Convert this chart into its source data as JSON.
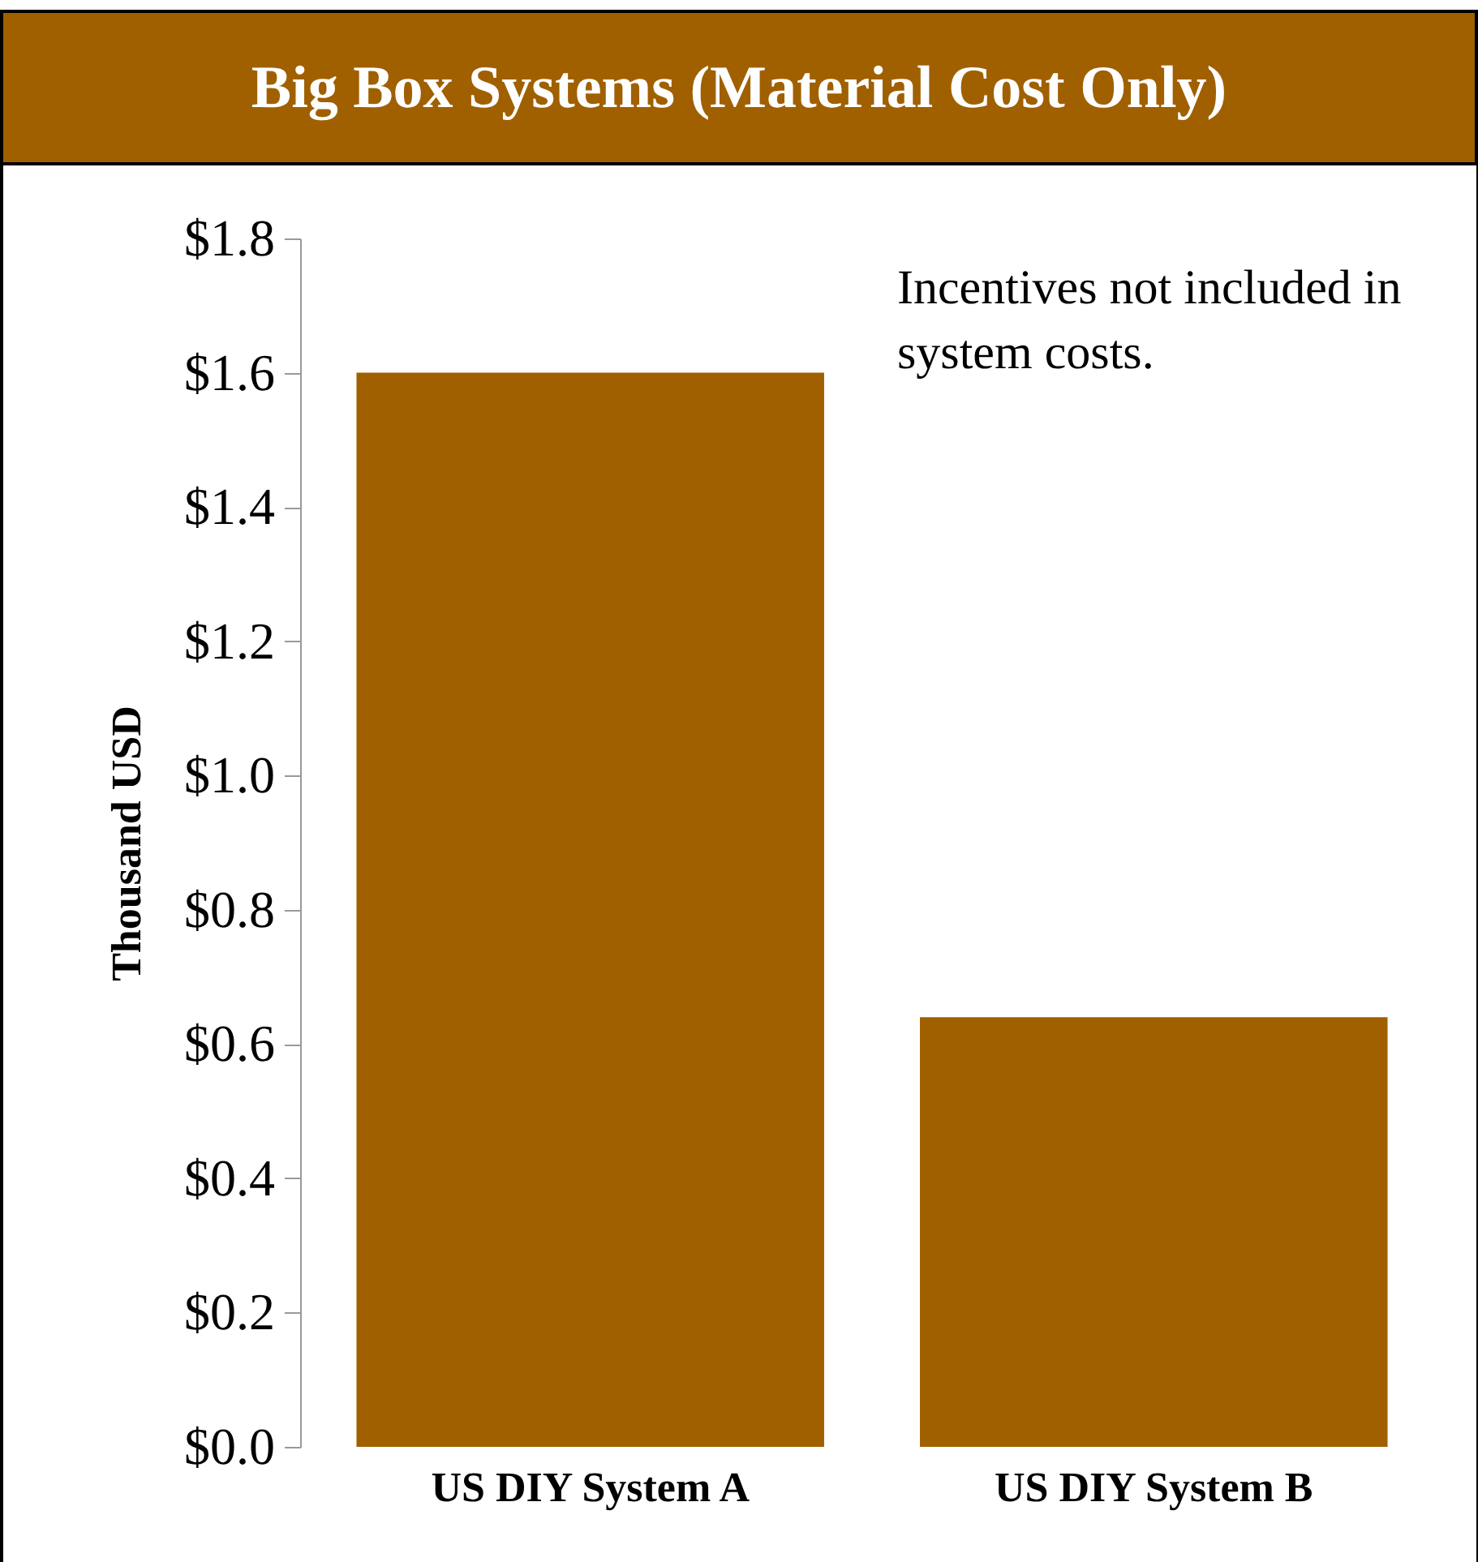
{
  "chart_data": {
    "type": "bar",
    "title": "Big Box Systems (Material Cost Only)",
    "ylabel": "Thousand USD",
    "categories": [
      "US DIY System A",
      "US DIY System B"
    ],
    "values": [
      1.6,
      0.64
    ],
    "color": "#a06000",
    "ylim": [
      0,
      1.8
    ],
    "yticks": [
      {
        "value": 0,
        "label": "$0.0"
      },
      {
        "value": 0.2,
        "label": "$0.2"
      },
      {
        "value": 0.4,
        "label": "$0.4"
      },
      {
        "value": 0.6,
        "label": "$0.6"
      },
      {
        "value": 0.8,
        "label": "$0.8"
      },
      {
        "value": 1.0,
        "label": "$1.0"
      },
      {
        "value": 1.2,
        "label": "$1.2"
      },
      {
        "value": 1.4,
        "label": "$1.4"
      },
      {
        "value": 1.6,
        "label": "$1.6"
      },
      {
        "value": 1.8,
        "label": "$1.8"
      }
    ],
    "grid": false,
    "annotations": [
      "Incentives not included in system costs."
    ]
  }
}
